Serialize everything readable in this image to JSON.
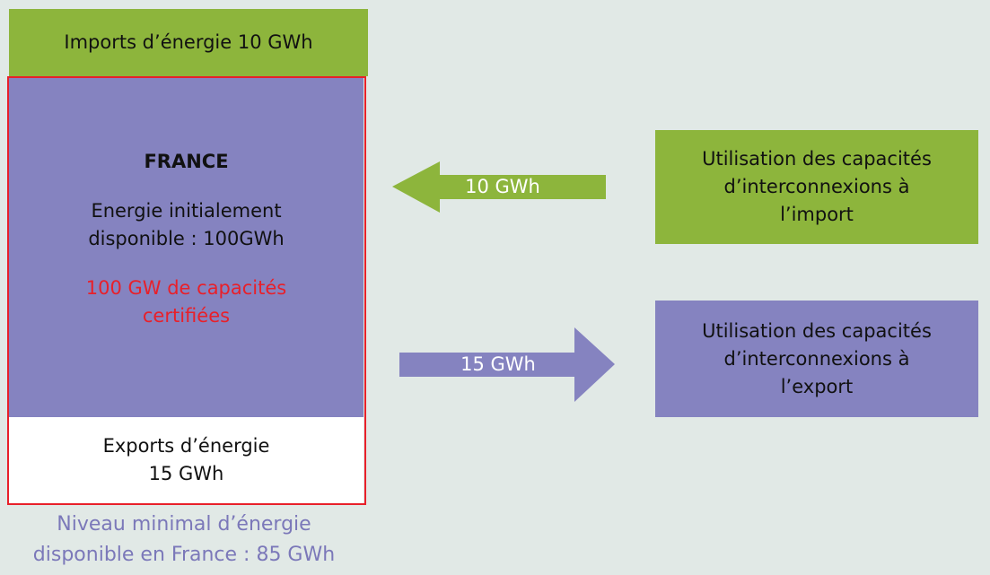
{
  "imports_box": {
    "text": "Imports d’énergie 10 GWh"
  },
  "france_box": {
    "title": "FRANCE",
    "energy_lines": [
      "Energie initialement",
      "disponible : 100GWh"
    ],
    "capacity_lines": [
      "100 GW de capacités",
      "certifiées"
    ]
  },
  "exports_box": {
    "lines": [
      "Exports d’énergie",
      "15 GWh"
    ]
  },
  "minimum_note": {
    "lines": [
      "Niveau minimal d’énergie",
      "disponible en France : 85 GWh"
    ]
  },
  "import_arrow": {
    "label": "10 GWh"
  },
  "export_arrow": {
    "label": "15 GWh"
  },
  "import_box": {
    "lines": [
      "Utilisation des capacités",
      "d’interconnexions à",
      "l’import"
    ]
  },
  "export_box": {
    "lines": [
      "Utilisation des capacités",
      "d’interconnexions à",
      "l’export"
    ]
  }
}
